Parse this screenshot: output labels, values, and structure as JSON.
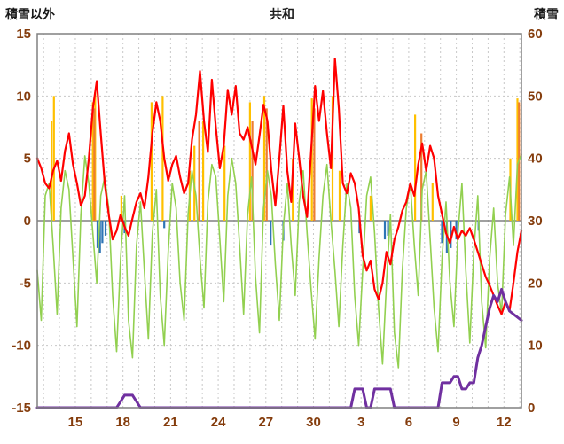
{
  "page": {
    "background": "#FFFFFF"
  },
  "chart_data": {
    "type": "line",
    "title": "共和",
    "left_axis": {
      "label": "積雪以外",
      "min": -15,
      "max": 15,
      "ticks": [
        15,
        10,
        5,
        0,
        -5,
        -10,
        -15
      ]
    },
    "right_axis": {
      "label": "積雪",
      "min": 0,
      "max": 60,
      "ticks": [
        60,
        50,
        40,
        30,
        20,
        10,
        0
      ]
    },
    "x_axis": {
      "min": 0,
      "max": 30.5,
      "minor_start": 0.4,
      "minor_step": 1,
      "ticks": [
        {
          "t": 2.4,
          "label": "15"
        },
        {
          "t": 5.4,
          "label": "18"
        },
        {
          "t": 8.4,
          "label": "21"
        },
        {
          "t": 11.4,
          "label": "24"
        },
        {
          "t": 14.4,
          "label": "27"
        },
        {
          "t": 17.4,
          "label": "30"
        },
        {
          "t": 20.4,
          "label": "3"
        },
        {
          "t": 23.4,
          "label": "6"
        },
        {
          "t": 26.4,
          "label": "9"
        },
        {
          "t": 29.4,
          "label": "12"
        }
      ]
    },
    "colors": {
      "grid": "#C8C8C8",
      "axis": "#808080",
      "tick_text": "#843C0C",
      "title_text": "#1A1A1A"
    },
    "series": [
      {
        "name": "sunshine-bars-yellow",
        "type": "bars",
        "axis": "left",
        "color": "#FFC000",
        "points": [
          [
            0.9,
            8
          ],
          [
            1.05,
            10
          ],
          [
            3.5,
            9.5
          ],
          [
            3.65,
            10.3
          ],
          [
            5.3,
            2
          ],
          [
            7.2,
            9.5
          ],
          [
            7.9,
            10
          ],
          [
            9.6,
            4
          ],
          [
            9.9,
            6
          ],
          [
            10.45,
            8
          ],
          [
            11.8,
            6
          ],
          [
            13.4,
            9.5
          ],
          [
            14.3,
            10
          ],
          [
            16.1,
            5
          ],
          [
            17.3,
            9.8
          ],
          [
            18.6,
            10
          ],
          [
            19.05,
            4
          ],
          [
            21.0,
            2
          ],
          [
            23.8,
            8.5
          ],
          [
            24.9,
            3
          ],
          [
            29.8,
            5
          ],
          [
            30.25,
            9.8
          ]
        ]
      },
      {
        "name": "sunshine-bars-orange",
        "type": "bars",
        "axis": "left",
        "color": "#ED7D31",
        "points": [
          [
            3.6,
            9
          ],
          [
            10.2,
            8
          ],
          [
            13.55,
            8
          ],
          [
            14.45,
            9
          ],
          [
            17.45,
            9
          ],
          [
            24.2,
            7
          ],
          [
            30.35,
            9.5
          ]
        ]
      },
      {
        "name": "precipitation-bars-blue",
        "type": "bars",
        "axis": "left",
        "color": "#2E75B6",
        "points": [
          [
            3.8,
            -2.2
          ],
          [
            3.95,
            -2.6
          ],
          [
            4.1,
            -1.8
          ],
          [
            4.3,
            -1.2
          ],
          [
            5.5,
            -1.0
          ],
          [
            8.0,
            -0.6
          ],
          [
            14.7,
            -2.0
          ],
          [
            15.5,
            -1.6
          ],
          [
            20.3,
            -1.0
          ],
          [
            21.9,
            -1.5
          ],
          [
            22.1,
            -1.2
          ],
          [
            25.5,
            -1.8
          ],
          [
            25.8,
            -2.6
          ],
          [
            26.05,
            -2.2
          ],
          [
            26.4,
            -1.5
          ],
          [
            27.8,
            -0.8
          ]
        ]
      },
      {
        "name": "wind-line-green",
        "type": "line",
        "axis": "left",
        "color": "#92D050",
        "width": 1.6,
        "x0": 0,
        "dx": 0.25,
        "y": [
          -4.0,
          -8.0,
          2.0,
          3.0,
          -2.0,
          -7.5,
          1.0,
          4.0,
          2.5,
          -3.0,
          -8.5,
          0.5,
          5.2,
          3.0,
          -1.0,
          -5.0,
          2.0,
          3.5,
          1.0,
          -6.0,
          -10.5,
          -3.0,
          2.0,
          -8.0,
          -11.0,
          -2.0,
          1.5,
          -4.0,
          -9.5,
          -1.0,
          2.5,
          -6.0,
          -10.0,
          -2.5,
          3.0,
          1.0,
          -5.0,
          -8.0,
          0.5,
          4.0,
          2.0,
          -3.0,
          -7.0,
          1.5,
          4.5,
          3.5,
          -1.5,
          -6.5,
          2.0,
          5.0,
          3.0,
          -2.0,
          -7.5,
          0.5,
          3.5,
          -4.5,
          -9.0,
          1.0,
          4.0,
          2.0,
          -3.5,
          -8.0,
          -0.5,
          3.0,
          -2.0,
          -6.0,
          1.5,
          4.0,
          -1.0,
          -5.5,
          -9.5,
          -3.0,
          2.0,
          4.5,
          0.0,
          -4.0,
          -8.5,
          -2.0,
          3.0,
          1.0,
          -6.0,
          -10.0,
          -4.0,
          2.0,
          3.5,
          -1.0,
          -7.0,
          -11.5,
          -5.0,
          0.5,
          -9.0,
          -11.8,
          -4.0,
          1.0,
          3.0,
          -2.0,
          -6.0,
          2.5,
          4.0,
          -1.5,
          -7.0,
          -10.5,
          -3.0,
          1.5,
          -5.0,
          -8.5,
          -1.0,
          3.0,
          -4.0,
          -9.8,
          -2.5,
          2.0,
          -6.5,
          -10.2,
          -3.0,
          1.0,
          -5.0,
          -7.5,
          0.5,
          3.5,
          -2.0,
          4.5,
          5.3
        ]
      },
      {
        "name": "temperature-line-red",
        "type": "line",
        "axis": "left",
        "color": "#FF0000",
        "width": 2.2,
        "x0": 0,
        "dx": 0.25,
        "y": [
          5.0,
          4.2,
          3.0,
          2.6,
          4.0,
          4.8,
          3.2,
          5.6,
          7.0,
          4.5,
          3.0,
          1.2,
          2.0,
          5.0,
          9.0,
          11.2,
          7.0,
          3.0,
          0.5,
          -1.5,
          -0.8,
          0.5,
          -0.5,
          -1.2,
          0.2,
          1.5,
          2.2,
          1.0,
          3.5,
          7.0,
          9.5,
          8.0,
          5.0,
          3.2,
          4.5,
          5.2,
          3.5,
          2.2,
          3.0,
          6.5,
          8.5,
          12.0,
          8.0,
          5.5,
          11.3,
          7.5,
          4.2,
          6.0,
          10.5,
          8.5,
          10.8,
          7.0,
          6.5,
          7.5,
          6.0,
          4.5,
          6.8,
          9.3,
          8.0,
          4.0,
          1.2,
          5.0,
          9.2,
          4.0,
          1.5,
          7.8,
          5.0,
          2.0,
          0.3,
          5.5,
          10.8,
          8.0,
          10.4,
          7.0,
          4.2,
          13.0,
          9.0,
          3.0,
          2.2,
          3.8,
          3.0,
          1.0,
          -2.8,
          -4.0,
          -3.2,
          -5.5,
          -6.3,
          -5.0,
          -2.5,
          -3.5,
          -1.5,
          -0.5,
          0.8,
          1.5,
          3.0,
          2.0,
          4.5,
          6.2,
          4.0,
          6.0,
          5.0,
          2.0,
          0.5,
          -1.0,
          -1.8,
          -0.5,
          -1.5,
          -0.8,
          -1.2,
          -0.6,
          -1.5,
          -2.5,
          -3.5,
          -4.5,
          -5.2,
          -6.0,
          -6.8,
          -7.5,
          -6.5,
          -7.2,
          -5.0,
          -2.5,
          -0.8
        ]
      },
      {
        "name": "snow-depth-line-purple",
        "type": "line",
        "axis": "right",
        "color": "#7030A0",
        "width": 3,
        "x0": 0,
        "dx": 0.25,
        "y": [
          0,
          0,
          0,
          0,
          0,
          0,
          0,
          0,
          0,
          0,
          0,
          0,
          0,
          0,
          0,
          0,
          0,
          0,
          0,
          0,
          0,
          1,
          2,
          2,
          2,
          1,
          0,
          0,
          0,
          0,
          0,
          0,
          0,
          0,
          0,
          0,
          0,
          0,
          0,
          0,
          0,
          0,
          0,
          0,
          0,
          0,
          0,
          0,
          0,
          0,
          0,
          0,
          0,
          0,
          0,
          0,
          0,
          0,
          0,
          0,
          0,
          0,
          0,
          0,
          0,
          0,
          0,
          0,
          0,
          0,
          0,
          0,
          0,
          0,
          0,
          0,
          0,
          0,
          0,
          0,
          3,
          3,
          3,
          0,
          0,
          3,
          3,
          3,
          3,
          3,
          0,
          0,
          0,
          0,
          0,
          0,
          0,
          0,
          0,
          0,
          0,
          0,
          4,
          4,
          4,
          5,
          5,
          3,
          3,
          4,
          4,
          8,
          10,
          13,
          16,
          18,
          17,
          19,
          17,
          15.5,
          15,
          14.5,
          14
        ]
      }
    ]
  }
}
